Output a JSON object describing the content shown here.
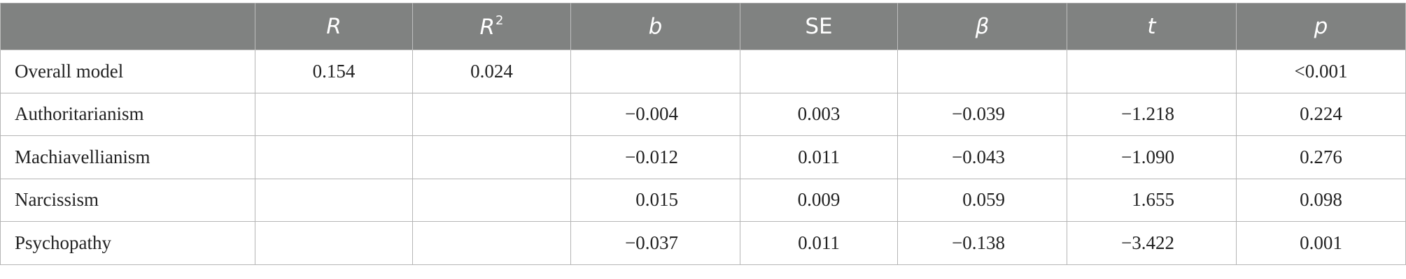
{
  "table": {
    "headers": [
      "",
      "R",
      "R",
      "b",
      "SE",
      "β",
      "t",
      "p"
    ],
    "header_sup": "2",
    "rows": [
      {
        "label": "Overall model",
        "R": "0.154",
        "R2": "0.024",
        "b": "",
        "SE": "",
        "beta": "",
        "t": "",
        "p": "<0.001"
      },
      {
        "label": "Authoritarianism",
        "R": "",
        "R2": "",
        "b": "−0.004",
        "SE": "0.003",
        "beta": "−0.039",
        "t": "−1.218",
        "p": "0.224"
      },
      {
        "label": "Machiavellianism",
        "R": "",
        "R2": "",
        "b": "−0.012",
        "SE": "0.011",
        "beta": "−0.043",
        "t": "−1.090",
        "p": "0.276"
      },
      {
        "label": "Narcissism",
        "R": "",
        "R2": "",
        "b": "0.015",
        "SE": "0.009",
        "beta": "0.059",
        "t": "1.655",
        "p": "0.098"
      },
      {
        "label": "Psychopathy",
        "R": "",
        "R2": "",
        "b": "−0.037",
        "SE": "0.011",
        "beta": "−0.138",
        "t": "−3.422",
        "p": "0.001"
      }
    ]
  },
  "colors": {
    "header_bg": "#808281",
    "header_text": "#ffffff",
    "border": "#b5b5b5",
    "body_text": "#222222"
  }
}
